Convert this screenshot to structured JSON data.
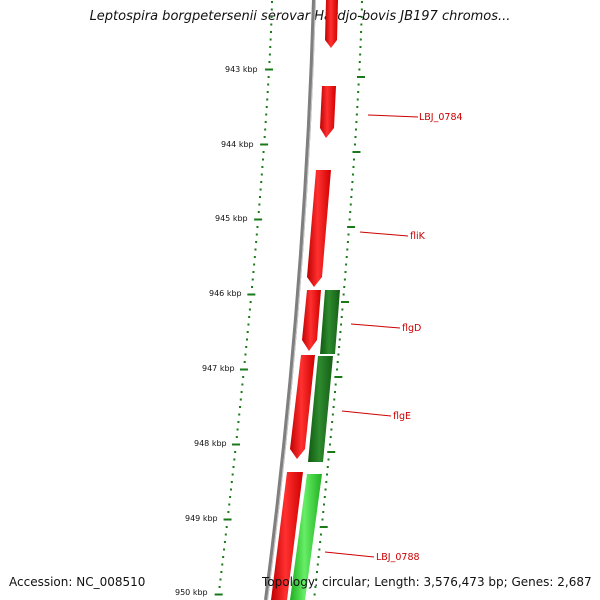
{
  "title": "Leptospira borgpetersenii serovar Hardjo-bovis JB197 chromos...",
  "accession_text": "Accession: NC_008510",
  "info_text": "Topology: circular; Length: 3,576,473 bp; Genes: 2,687",
  "scale_ticks": [
    "943 kbp",
    "944 kbp",
    "945 kbp",
    "946 kbp",
    "947 kbp",
    "948 kbp",
    "949 kbp",
    "950 kbp"
  ],
  "gene_labels": [
    "LBJ_0784",
    "fliK",
    "flgD",
    "flgE",
    "LBJ_0788"
  ],
  "colors": {
    "forward_gene": "#ee0000",
    "reverse_gene": "#1e7a1e",
    "reverse_gene_light": "#33cc33",
    "backbone": "#808080",
    "tick": "#1a7a1a",
    "label_line": "#cc0000"
  }
}
